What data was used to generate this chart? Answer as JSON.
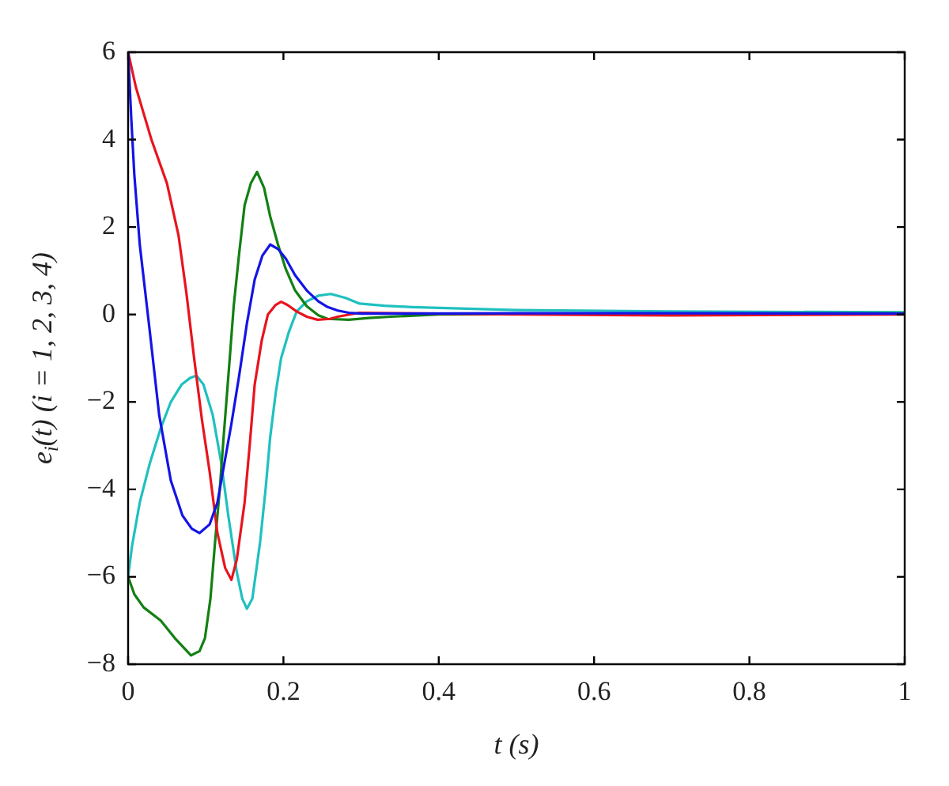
{
  "chart_data": {
    "type": "line",
    "xlabel": "t (s)",
    "ylabel": "e$_{i}$(t) (i = 1, 2, 3, 4)",
    "xlim": [
      0,
      1
    ],
    "ylim": [
      -8,
      6
    ],
    "xticks": [
      0,
      0.2,
      0.4,
      0.6,
      0.8,
      1
    ],
    "yticks": [
      {
        "value": -8,
        "label": "−8"
      },
      {
        "value": -6,
        "label": "−6"
      },
      {
        "value": -4,
        "label": "−4"
      },
      {
        "value": -2,
        "label": "−2"
      },
      0,
      2,
      4,
      6
    ],
    "grid": false,
    "legend": false,
    "marker": "none",
    "line_style": "solid",
    "series": [
      {
        "color": "#1414e6",
        "x": [
          0,
          0.004,
          0.008,
          0.015,
          0.028,
          0.04,
          0.055,
          0.07,
          0.082,
          0.092,
          0.105,
          0.115,
          0.123,
          0.133,
          0.143,
          0.153,
          0.163,
          0.173,
          0.183,
          0.193,
          0.203,
          0.215,
          0.23,
          0.245,
          0.257,
          0.27,
          0.284,
          0.3,
          0.35,
          0.5,
          0.7,
          1
        ],
        "values": [
          6,
          4.5,
          3.2,
          1.6,
          -0.4,
          -2.3,
          -3.8,
          -4.6,
          -4.9,
          -5.0,
          -4.8,
          -4.3,
          -3.5,
          -2.5,
          -1.4,
          -0.2,
          0.8,
          1.35,
          1.6,
          1.5,
          1.28,
          0.9,
          0.55,
          0.3,
          0.17,
          0.09,
          0.04,
          0.02,
          0.02,
          0.03,
          0.03,
          0.02
        ]
      },
      {
        "color": "#e8141e",
        "x": [
          0,
          0.01,
          0.02,
          0.03,
          0.05,
          0.065,
          0.075,
          0.085,
          0.095,
          0.105,
          0.115,
          0.125,
          0.133,
          0.14,
          0.15,
          0.157,
          0.163,
          0.172,
          0.18,
          0.19,
          0.197,
          0.205,
          0.217,
          0.23,
          0.244,
          0.26,
          0.27,
          0.285,
          0.298,
          0.35,
          0.5,
          0.7,
          1
        ],
        "values": [
          6,
          5.2,
          4.6,
          4.0,
          3.0,
          1.8,
          0.5,
          -1.0,
          -2.4,
          -3.6,
          -5.0,
          -5.8,
          -6.07,
          -5.6,
          -4.3,
          -2.9,
          -1.6,
          -0.6,
          0,
          0.22,
          0.29,
          0.22,
          0.07,
          -0.05,
          -0.12,
          -0.1,
          -0.05,
          0.0,
          0.04,
          0.03,
          0.0,
          -0.02,
          0.0
        ]
      },
      {
        "color": "#128012",
        "x": [
          0,
          0.008,
          0.02,
          0.042,
          0.06,
          0.081,
          0.092,
          0.099,
          0.106,
          0.112,
          0.118,
          0.123,
          0.13,
          0.136,
          0.143,
          0.15,
          0.158,
          0.166,
          0.175,
          0.183,
          0.193,
          0.203,
          0.215,
          0.23,
          0.245,
          0.257,
          0.284,
          0.31,
          0.338,
          0.4,
          1
        ],
        "values": [
          -6,
          -6.4,
          -6.7,
          -7.0,
          -7.4,
          -7.8,
          -7.7,
          -7.4,
          -6.5,
          -5.2,
          -4.0,
          -2.8,
          -1.2,
          0.2,
          1.4,
          2.5,
          3.0,
          3.26,
          2.9,
          2.24,
          1.6,
          1.04,
          0.55,
          0.19,
          -0.02,
          -0.1,
          -0.12,
          -0.08,
          -0.05,
          0.0,
          0.03
        ]
      },
      {
        "color": "#20c0c0",
        "x": [
          0,
          0.005,
          0.015,
          0.028,
          0.042,
          0.055,
          0.069,
          0.08,
          0.088,
          0.097,
          0.109,
          0.12,
          0.129,
          0.14,
          0.147,
          0.153,
          0.16,
          0.17,
          0.177,
          0.183,
          0.19,
          0.197,
          0.207,
          0.217,
          0.23,
          0.245,
          0.261,
          0.28,
          0.298,
          0.33,
          0.365,
          0.5,
          0.7,
          1
        ],
        "values": [
          -6,
          -5.3,
          -4.3,
          -3.4,
          -2.6,
          -2.0,
          -1.6,
          -1.45,
          -1.4,
          -1.6,
          -2.3,
          -3.4,
          -4.6,
          -5.9,
          -6.5,
          -6.73,
          -6.5,
          -5.2,
          -4.0,
          -2.8,
          -1.8,
          -1.0,
          -0.4,
          0.07,
          0.3,
          0.43,
          0.47,
          0.38,
          0.25,
          0.2,
          0.17,
          0.1,
          0.07,
          0.05
        ]
      }
    ]
  }
}
